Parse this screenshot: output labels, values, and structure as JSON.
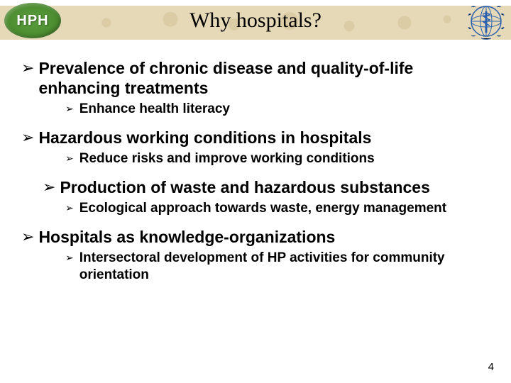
{
  "header": {
    "logo_text": "HPH",
    "title": "Why hospitals?",
    "band_color": "#e6d9b8",
    "logo_bg": "#5a9e3e",
    "who_color": "#2a5fb0"
  },
  "bullets": [
    {
      "text": "Prevalence of chronic disease and quality-of-life enhancing treatments",
      "indent": false,
      "sub": [
        {
          "text": "Enhance health literacy"
        }
      ]
    },
    {
      "text": "Hazardous working conditions in hospitals",
      "indent": false,
      "sub": [
        {
          "text": "Reduce risks and improve working conditions"
        }
      ]
    },
    {
      "text": "Production of waste and hazardous substances",
      "indent": true,
      "sub": [
        {
          "text": "Ecological approach towards waste, energy management"
        }
      ]
    },
    {
      "text": "Hospitals as knowledge-organizations",
      "indent": false,
      "sub": [
        {
          "text": "Intersectoral development of HP activities for community orientation"
        }
      ]
    }
  ],
  "page_number": "4",
  "glyphs": {
    "l1_bullet": "➢",
    "l2_bullet": "➢"
  },
  "colors": {
    "text": "#000000",
    "background": "#ffffff"
  }
}
